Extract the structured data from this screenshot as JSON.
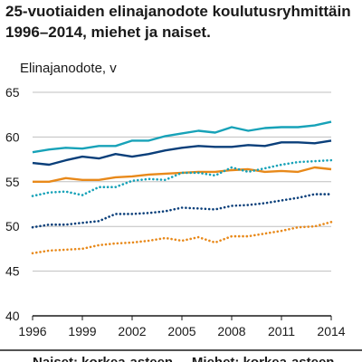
{
  "chart_data": {
    "type": "line",
    "title_lines": [
      "25-vuotiaiden elinajanodote koulutusryhmittäin",
      "1996–2014, miehet ja naiset."
    ],
    "ylabel": "Elinajanodote, v",
    "xlabel": "",
    "ylim": [
      40,
      65
    ],
    "xlim": [
      1996,
      2014
    ],
    "y_ticks": [
      40,
      45,
      50,
      55,
      60,
      65
    ],
    "x_ticks": [
      1996,
      1999,
      2002,
      2005,
      2008,
      2011,
      2014
    ],
    "grid": true,
    "legend_text": "Naiset: korkea-asteen ... Miehet: korkea-asteen",
    "x": [
      1996,
      1997,
      1998,
      1999,
      2000,
      2001,
      2002,
      2003,
      2004,
      2005,
      2006,
      2007,
      2008,
      2009,
      2010,
      2011,
      2012,
      2013,
      2014
    ],
    "series": [
      {
        "color": "#17a2b8",
        "dash": "solid",
        "values": [
          58.3,
          58.6,
          58.8,
          58.7,
          59.0,
          59.0,
          59.6,
          59.6,
          60.1,
          60.4,
          60.7,
          60.5,
          61.1,
          60.7,
          61.0,
          61.1,
          61.1,
          61.3,
          61.7
        ]
      },
      {
        "color": "#0a3f7a",
        "dash": "solid",
        "values": [
          57.1,
          56.9,
          57.4,
          57.8,
          57.6,
          58.1,
          57.8,
          58.1,
          58.5,
          58.8,
          59.0,
          58.9,
          58.9,
          59.1,
          59.0,
          59.4,
          59.4,
          59.3,
          59.6
        ]
      },
      {
        "color": "#e8891a",
        "dash": "solid",
        "values": [
          55.0,
          55.0,
          55.4,
          55.2,
          55.2,
          55.5,
          55.6,
          55.8,
          55.9,
          56.0,
          56.1,
          56.1,
          56.3,
          56.4,
          56.1,
          56.2,
          56.1,
          56.6,
          56.4
        ]
      },
      {
        "color": "#17a2b8",
        "dash": "dotted",
        "values": [
          53.4,
          53.8,
          53.9,
          53.5,
          54.4,
          54.4,
          55.1,
          55.3,
          55.2,
          56.0,
          56.0,
          55.7,
          56.6,
          56.1,
          56.5,
          56.9,
          57.2,
          57.3,
          57.4
        ]
      },
      {
        "color": "#0a3f7a",
        "dash": "dotted",
        "values": [
          49.9,
          50.2,
          50.2,
          50.4,
          50.6,
          51.4,
          51.4,
          51.5,
          51.7,
          52.1,
          52.0,
          51.9,
          52.3,
          52.4,
          52.6,
          52.9,
          53.2,
          53.6,
          53.6
        ]
      },
      {
        "color": "#e8891a",
        "dash": "dotted",
        "values": [
          47.0,
          47.3,
          47.4,
          47.5,
          47.9,
          48.1,
          48.2,
          48.4,
          48.7,
          48.4,
          48.8,
          48.2,
          48.9,
          48.9,
          49.2,
          49.5,
          49.9,
          50.0,
          50.5
        ]
      }
    ]
  }
}
